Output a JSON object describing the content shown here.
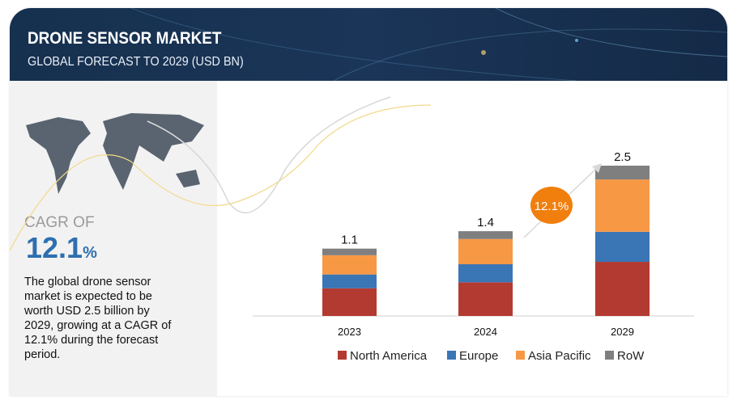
{
  "header": {
    "title": "DRONE SENSOR MARKET",
    "subtitle": "GLOBAL FORECAST TO 2029 (USD BN)"
  },
  "sidebar": {
    "cagr_label": "CAGR OF",
    "cagr_value": "12.1",
    "cagr_unit": "%",
    "description": "The global drone sensor market is expected to be worth USD 2.5 billion by 2029, growing at a CAGR of 12.1% during the forecast period."
  },
  "chart_data": {
    "type": "bar",
    "stacked": true,
    "categories": [
      "2023",
      "2024",
      "2029"
    ],
    "totals": [
      "1.1",
      "1.4",
      "2.5"
    ],
    "series": [
      {
        "name": "North America",
        "color": "#b33a30",
        "values": [
          0.46,
          0.56,
          0.9
        ]
      },
      {
        "name": "Europe",
        "color": "#3a75b5",
        "values": [
          0.23,
          0.3,
          0.5
        ]
      },
      {
        "name": "Asia Pacific",
        "color": "#f79845",
        "values": [
          0.32,
          0.42,
          0.87
        ]
      },
      {
        "name": "RoW",
        "color": "#7f7f7f",
        "values": [
          0.11,
          0.13,
          0.23
        ]
      }
    ],
    "annotation": "12.1%",
    "annotation_color": "#f07f0e",
    "legend": "bottom",
    "ylim": [
      0,
      2.5
    ]
  }
}
